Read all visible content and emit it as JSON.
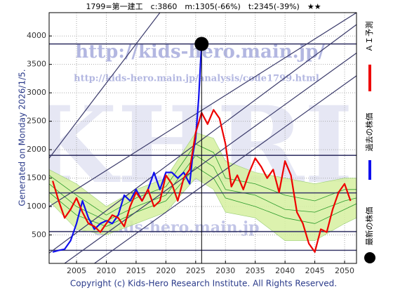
{
  "chart_data": {
    "type": "line",
    "title": "1799=第一建工　c:3860　m:1305(-66%)　t:2345(-39%)　★★",
    "side_note": "Generated on Monday 2026/1/5.",
    "copyright": "Copyright (c) Kids-Hero Research Institute. All Rights Reserved.",
    "watermarks": [
      "http://kids-hero.main.jp/",
      "http://kids-hero.main.jp/analysis/code1799.html",
      "KHRI",
      "@kids-hero.main.jp"
    ],
    "legend_items": [
      "ＡＩ予測",
      "過去の株価",
      "最新の株価"
    ],
    "xlim": [
      2000.4,
      2052
    ],
    "ylim": [
      0,
      4410
    ],
    "xticks": [
      2005,
      2010,
      2015,
      2020,
      2025,
      2030,
      2035,
      2040,
      2045,
      2050
    ],
    "yticks": [
      500,
      1000,
      1500,
      2000,
      2500,
      3000,
      3500,
      4000
    ],
    "grid": true,
    "hlines": {
      "color": "#3a3a6a",
      "values": [
        3860,
        1900,
        1240,
        560,
        230
      ]
    },
    "trend_lines": {
      "color": "#3a3a6a",
      "lines": [
        {
          "x": [
            2000.4,
            2019
          ],
          "y": [
            1850,
            4410
          ]
        },
        {
          "x": [
            2000.4,
            2052
          ],
          "y": [
            1000,
            4410
          ]
        },
        {
          "x": [
            2000.4,
            2052
          ],
          "y": [
            180,
            4200
          ]
        },
        {
          "x": [
            2003,
            2052
          ],
          "y": [
            0,
            3700
          ]
        },
        {
          "x": [
            2008,
            2052
          ],
          "y": [
            0,
            3300
          ]
        }
      ]
    },
    "band": {
      "color": "#d6f0a0",
      "x": [
        2000.4,
        2005,
        2010,
        2015,
        2020,
        2025,
        2028,
        2030,
        2035,
        2040,
        2045,
        2050,
        2052
      ],
      "upper": [
        1650,
        1400,
        1000,
        1300,
        1500,
        2300,
        2200,
        1800,
        1600,
        1500,
        1400,
        1500,
        1500
      ],
      "lower": [
        1100,
        600,
        500,
        700,
        900,
        1500,
        1300,
        900,
        800,
        400,
        400,
        700,
        800
      ]
    },
    "ensemble": {
      "color": "#2a9a2a",
      "x": [
        2000.4,
        2005,
        2010,
        2015,
        2020,
        2025,
        2028,
        2030,
        2035,
        2040,
        2045,
        2050,
        2052
      ],
      "lines": [
        [
          1400,
          1000,
          750,
          1000,
          1200,
          1900,
          1700,
          1300,
          1200,
          950,
          900,
          1100,
          1150
        ],
        [
          1250,
          850,
          650,
          900,
          1100,
          1700,
          1500,
          1150,
          1000,
          800,
          700,
          950,
          1050
        ],
        [
          1550,
          1200,
          850,
          1150,
          1350,
          2100,
          1950,
          1500,
          1400,
          1200,
          1100,
          1300,
          1300
        ]
      ]
    },
    "series": [
      {
        "name": "過去の株価",
        "color": "#1010ee",
        "x": [
          2001,
          2002,
          2003,
          2004,
          2005,
          2006,
          2007,
          2008,
          2009,
          2010,
          2011,
          2012,
          2013,
          2014,
          2015,
          2016,
          2017,
          2018,
          2019,
          2020,
          2021,
          2022,
          2023,
          2024,
          2024.5,
          2025,
          2025.5,
          2025.8,
          2026
        ],
        "values": [
          200,
          230,
          250,
          400,
          700,
          1100,
          800,
          600,
          700,
          750,
          700,
          850,
          1200,
          1100,
          1300,
          1100,
          1300,
          1600,
          1300,
          1600,
          1600,
          1500,
          1600,
          1400,
          1900,
          2200,
          2900,
          3500,
          3860
        ]
      },
      {
        "name": "ＡＩ予測",
        "color": "#ee0000",
        "x": [
          2001,
          2002,
          2003,
          2004,
          2005,
          2006,
          2007,
          2008,
          2009,
          2010,
          2011,
          2012,
          2013,
          2014,
          2015,
          2016,
          2017,
          2018,
          2019,
          2020,
          2021,
          2022,
          2023,
          2024,
          2025,
          2026,
          2027,
          2028,
          2029,
          2030,
          2031,
          2032,
          2033,
          2034,
          2035,
          2036,
          2037,
          2038,
          2039,
          2040,
          2041,
          2042,
          2043,
          2044,
          2045,
          2046,
          2047,
          2048,
          2049,
          2050,
          2051
        ],
        "values": [
          1450,
          1100,
          800,
          950,
          1150,
          900,
          700,
          650,
          550,
          700,
          850,
          800,
          650,
          1000,
          1250,
          1100,
          1300,
          1000,
          1100,
          1550,
          1400,
          1100,
          1500,
          1650,
          2300,
          2650,
          2450,
          2700,
          2550,
          2100,
          1350,
          1550,
          1300,
          1600,
          1850,
          1700,
          1500,
          1650,
          1250,
          1800,
          1550,
          900,
          700,
          350,
          200,
          600,
          550,
          950,
          1250,
          1400,
          1100
        ]
      }
    ],
    "latest": {
      "x": 2026,
      "value": 3860
    }
  }
}
